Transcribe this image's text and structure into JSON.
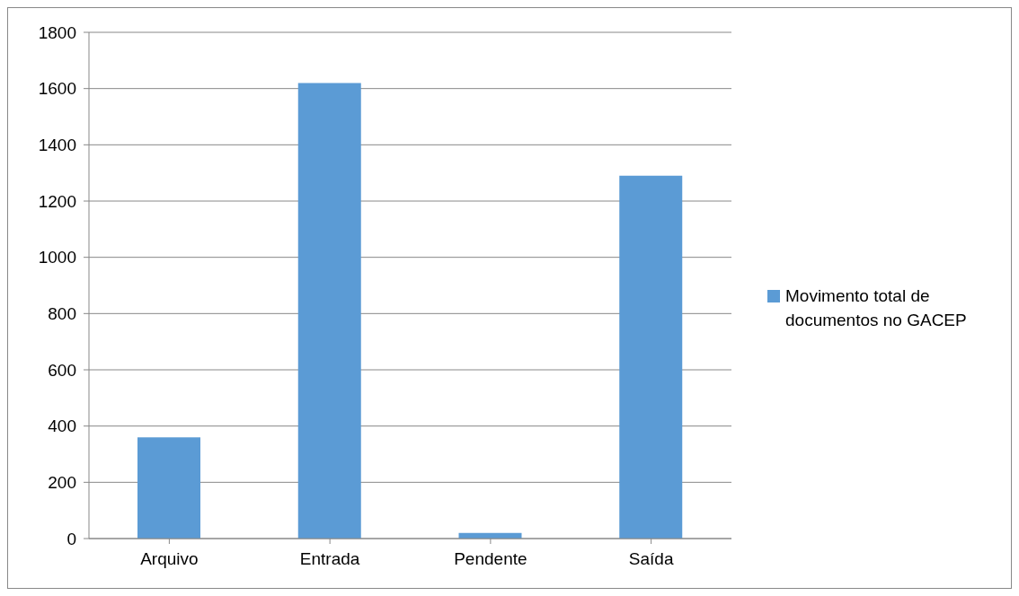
{
  "chart_data": {
    "type": "bar",
    "categories": [
      "Arquivo",
      "Entrada",
      "Pendente",
      "Saída"
    ],
    "series": [
      {
        "name": "Movimento total de documentos no GACEP",
        "color": "#5b9bd5",
        "values": [
          360,
          1620,
          20,
          1290
        ]
      }
    ],
    "ylim": [
      0,
      1800
    ],
    "yticks": [
      0,
      200,
      400,
      600,
      800,
      1000,
      1200,
      1400,
      1600,
      1800
    ],
    "grid": "y",
    "legend": "right"
  }
}
